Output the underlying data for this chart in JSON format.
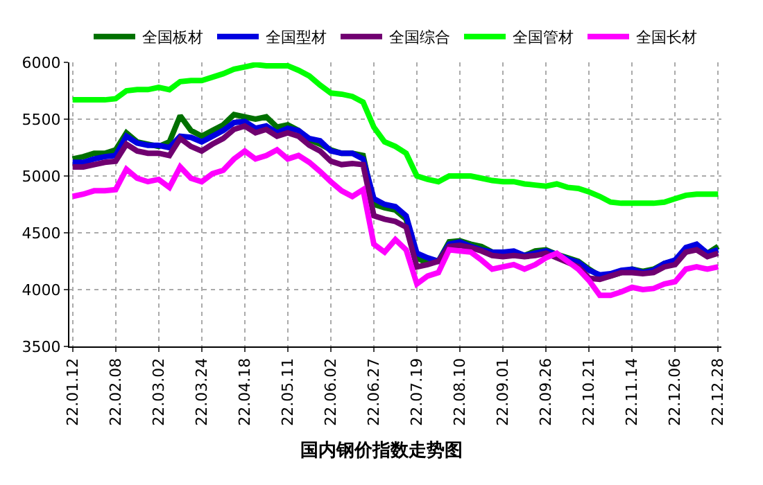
{
  "chart_data": {
    "type": "line",
    "title": "国内钢价指数走势图",
    "categories": [
      "22.01.12",
      null,
      null,
      null,
      "22.02.08",
      null,
      null,
      null,
      "22.03.02",
      null,
      null,
      null,
      "22.03.24",
      null,
      null,
      null,
      "22.04.18",
      null,
      null,
      null,
      "22.05.11",
      null,
      null,
      null,
      "22.06.02",
      null,
      null,
      null,
      "22.06.27",
      null,
      null,
      null,
      "22.07.19",
      null,
      null,
      null,
      "22.08.10",
      null,
      null,
      null,
      "22.09.01",
      null,
      null,
      null,
      "22.09.26",
      null,
      null,
      null,
      "22.10.21",
      null,
      null,
      null,
      "22.11.14",
      null,
      null,
      null,
      "22.12.06",
      null,
      null,
      null,
      "22.12.28"
    ],
    "series": [
      {
        "name": "全国板材",
        "color": "#007000",
        "values": [
          5150,
          5170,
          5200,
          5200,
          5230,
          5380,
          5300,
          5280,
          5260,
          5300,
          5530,
          5400,
          5350,
          5400,
          5450,
          5540,
          5520,
          5500,
          5520,
          5430,
          5450,
          5400,
          5320,
          5280,
          5230,
          5200,
          5200,
          5180,
          4750,
          4720,
          4700,
          4620,
          4280,
          4230,
          4250,
          4420,
          4430,
          4400,
          4380,
          4330,
          4320,
          4320,
          4300,
          4340,
          4350,
          4310,
          4280,
          4250,
          4180,
          4120,
          4120,
          4150,
          4180,
          4160,
          4180,
          4230,
          4250,
          4330,
          4380,
          4320,
          4380
        ]
      },
      {
        "name": "全国型材",
        "color": "#0000e0",
        "values": [
          5120,
          5120,
          5150,
          5170,
          5180,
          5350,
          5290,
          5270,
          5270,
          5250,
          5350,
          5340,
          5300,
          5350,
          5400,
          5470,
          5480,
          5420,
          5440,
          5380,
          5420,
          5400,
          5330,
          5310,
          5220,
          5200,
          5200,
          5150,
          4800,
          4750,
          4730,
          4650,
          4320,
          4280,
          4250,
          4400,
          4420,
          4380,
          4350,
          4330,
          4330,
          4340,
          4300,
          4320,
          4340,
          4310,
          4270,
          4240,
          4170,
          4130,
          4140,
          4170,
          4180,
          4150,
          4170,
          4230,
          4260,
          4370,
          4400,
          4320,
          4350
        ]
      },
      {
        "name": "全国综合",
        "color": "#700070",
        "values": [
          5080,
          5080,
          5100,
          5120,
          5130,
          5280,
          5220,
          5200,
          5200,
          5180,
          5330,
          5260,
          5220,
          5280,
          5330,
          5410,
          5440,
          5380,
          5410,
          5350,
          5380,
          5350,
          5270,
          5220,
          5130,
          5100,
          5110,
          5100,
          4650,
          4620,
          4600,
          4550,
          4200,
          4220,
          4250,
          4380,
          4390,
          4370,
          4340,
          4300,
          4290,
          4300,
          4290,
          4300,
          4320,
          4280,
          4240,
          4200,
          4100,
          4090,
          4120,
          4150,
          4150,
          4140,
          4150,
          4200,
          4220,
          4330,
          4350,
          4290,
          4320
        ]
      },
      {
        "name": "全国管材",
        "color": "#00ff00",
        "values": [
          5670,
          5670,
          5670,
          5670,
          5680,
          5750,
          5760,
          5760,
          5780,
          5760,
          5830,
          5840,
          5840,
          5870,
          5900,
          5940,
          5960,
          5980,
          5970,
          5970,
          5970,
          5930,
          5880,
          5800,
          5730,
          5720,
          5700,
          5650,
          5430,
          5300,
          5260,
          5200,
          5000,
          4970,
          4950,
          5000,
          5000,
          5000,
          4980,
          4960,
          4950,
          4950,
          4930,
          4920,
          4910,
          4930,
          4900,
          4890,
          4860,
          4820,
          4770,
          4760,
          4760,
          4760,
          4760,
          4770,
          4800,
          4830,
          4840,
          4840,
          4840
        ]
      },
      {
        "name": "全国长材",
        "color": "#ff00ff",
        "values": [
          4820,
          4840,
          4870,
          4870,
          4880,
          5060,
          4980,
          4950,
          4970,
          4900,
          5080,
          4980,
          4950,
          5020,
          5050,
          5150,
          5220,
          5150,
          5180,
          5230,
          5150,
          5180,
          5120,
          5040,
          4950,
          4870,
          4820,
          4880,
          4400,
          4330,
          4440,
          4350,
          4050,
          4120,
          4150,
          4350,
          4340,
          4330,
          4260,
          4180,
          4200,
          4220,
          4180,
          4220,
          4280,
          4320,
          4250,
          4180,
          4080,
          3950,
          3950,
          3980,
          4020,
          4000,
          4010,
          4050,
          4070,
          4180,
          4200,
          4180,
          4200
        ]
      }
    ],
    "ylim": [
      3500,
      6000
    ],
    "yticks": [
      3500,
      4000,
      4500,
      5000,
      5500,
      6000
    ],
    "grid": true,
    "legend": "top",
    "marker": "none",
    "line_style": "solid"
  }
}
